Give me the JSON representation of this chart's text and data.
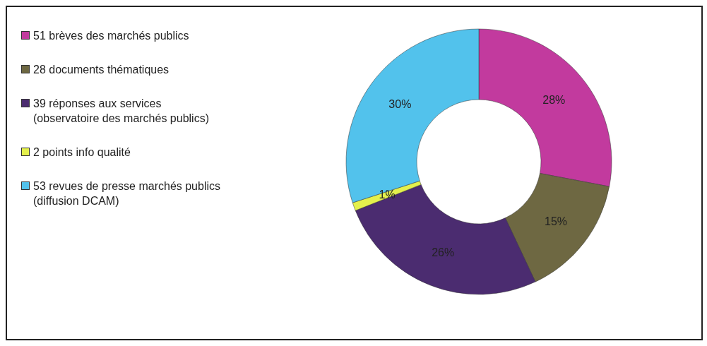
{
  "chart_data": {
    "type": "donut",
    "categories": [
      "51 brèves des marchés publics",
      "28 documents thématiques",
      "39 réponses aux services\n(observatoire des marchés publics)",
      "2 points info qualité",
      "53 revues de presse marchés publics\n(diffusion DCAM)"
    ],
    "values": [
      28,
      15,
      26,
      1,
      30
    ],
    "colors": [
      "#c23a9e",
      "#6e6842",
      "#4b2c70",
      "#e4f04c",
      "#52c2ec"
    ],
    "value_labels": [
      "28%",
      "15%",
      "26%",
      "1%",
      "30%"
    ],
    "legend": "left"
  }
}
